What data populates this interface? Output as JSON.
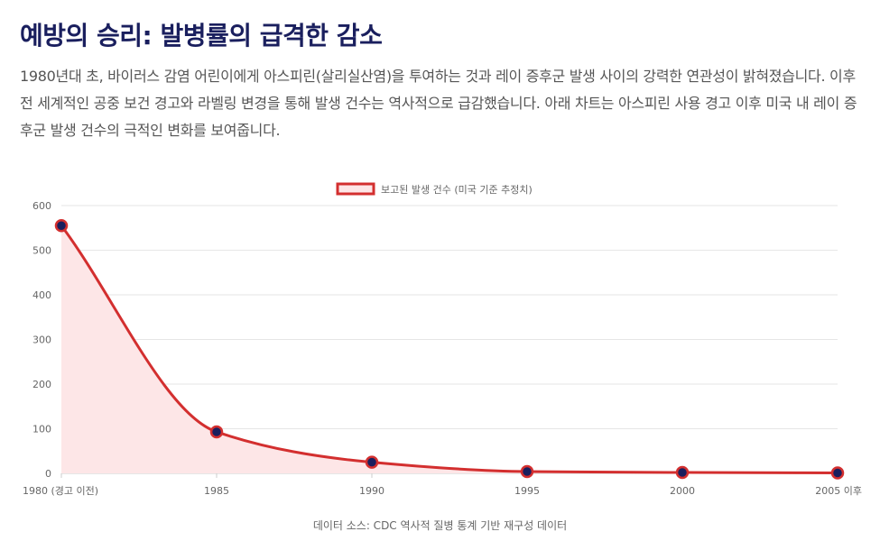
{
  "page": {
    "title": "예방의 승리: 발병률의 급격한 감소",
    "intro": "1980년대 초, 바이러스 감염 어린이에게 아스피린(살리실산염)을 투여하는 것과 레이 증후군 발생 사이의 강력한 연관성이 밝혀졌습니다. 이후 전 세계적인 공중 보건 경고와 라벨링 변경을 통해 발생 건수는 역사적으로 급감했습니다. 아래 차트는 아스피린 사용 경고 이후 미국 내 레이 증후군 발생 건수의 극적인 변화를 보여줍니다.",
    "footer": "데이터 소스: CDC 역사적 질병 통계 기반 재구성 데이터"
  },
  "chart_data": {
    "type": "area",
    "categories": [
      "1980 (경고 이전)",
      "1985",
      "1990",
      "1995",
      "2000",
      "2005 이후"
    ],
    "series": [
      {
        "name": "보고된 발생 건수 (미국 기준 추정치)",
        "values": [
          555,
          93,
          25,
          4,
          2,
          1
        ]
      }
    ],
    "ylim": [
      0,
      600
    ],
    "yticks": [
      0,
      100,
      200,
      300,
      400,
      500,
      600
    ],
    "grid": true,
    "legend": "top-center",
    "colors": {
      "line": "#d32f2f",
      "fill": "#fde6e7",
      "point": "#1a1f5e",
      "grid": "#e6e6e6"
    }
  }
}
